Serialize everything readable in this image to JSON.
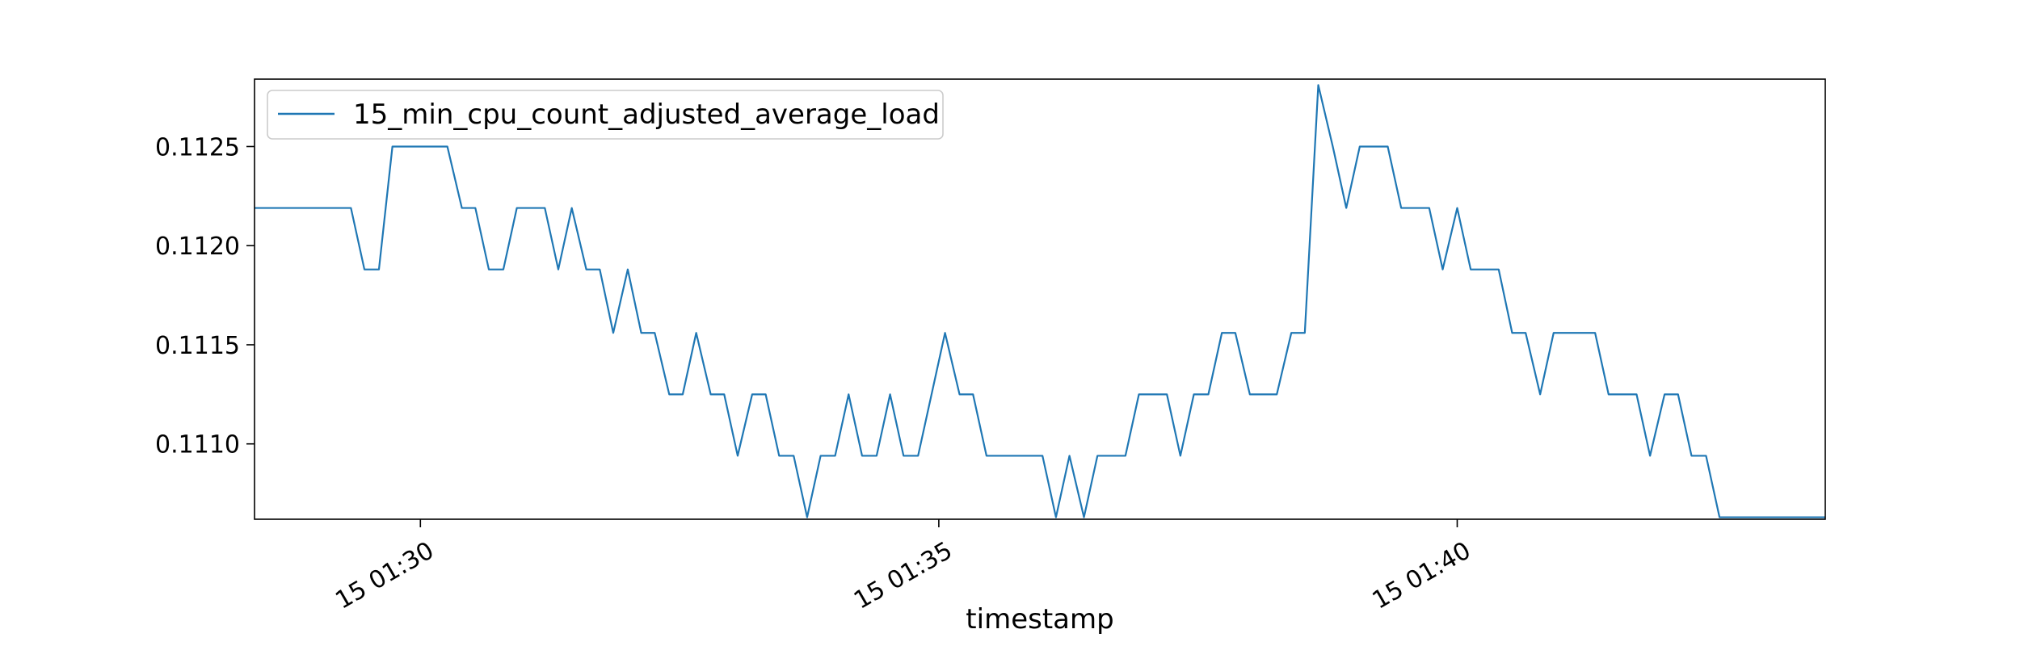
{
  "chart_data": {
    "type": "line",
    "title": "",
    "xlabel": "timestamp",
    "ylabel": "",
    "grid": false,
    "legend_placement": "top-left",
    "line_color": "#1f77b4",
    "x_unit": "minute of 15 01:xx",
    "xlim": [
      26.75,
      41.9
    ],
    "ylim": [
      0.11062,
      0.11284
    ],
    "x_ticks": [
      {
        "value": 28.35,
        "label": "15 01:30"
      },
      {
        "value": 33.35,
        "label": "15 01:35"
      },
      {
        "value": 38.35,
        "label": "15 01:40"
      }
    ],
    "y_ticks": [
      {
        "value": 0.111,
        "label": "0.1110"
      },
      {
        "value": 0.1115,
        "label": "0.1115"
      },
      {
        "value": 0.112,
        "label": "0.1120"
      },
      {
        "value": 0.1125,
        "label": "0.1125"
      }
    ],
    "series": [
      {
        "name": "15_min_cpu_count_adjusted_average_load",
        "x": [
          26.75,
          27.68,
          27.81,
          27.95,
          28.08,
          28.21,
          28.35,
          28.48,
          28.61,
          28.75,
          28.88,
          29.01,
          29.15,
          29.28,
          29.41,
          29.55,
          29.68,
          29.81,
          29.95,
          30.08,
          30.21,
          30.35,
          30.48,
          30.61,
          30.75,
          30.88,
          31.01,
          31.15,
          31.28,
          31.41,
          31.55,
          31.68,
          31.81,
          31.95,
          32.08,
          32.21,
          32.35,
          32.48,
          32.61,
          32.75,
          32.88,
          33.01,
          33.15,
          33.28,
          33.41,
          33.55,
          33.68,
          33.81,
          33.95,
          34.08,
          34.21,
          34.35,
          34.48,
          34.61,
          34.75,
          34.88,
          35.01,
          35.15,
          35.28,
          35.41,
          35.55,
          35.68,
          35.81,
          35.95,
          36.08,
          36.21,
          36.35,
          36.48,
          36.61,
          36.75,
          36.88,
          37.01,
          37.15,
          37.28,
          37.41,
          37.55,
          37.68,
          37.81,
          37.95,
          38.08,
          38.21,
          38.35,
          38.48,
          38.61,
          38.75,
          38.88,
          39.01,
          39.15,
          39.28,
          39.41,
          39.55,
          39.68,
          39.81,
          39.95,
          40.08,
          40.21,
          40.35,
          40.48,
          40.61,
          40.75,
          40.88,
          41.01,
          41.15,
          41.28,
          41.41,
          41.55,
          41.68,
          41.81,
          41.9
        ],
        "values": [
          0.11219,
          0.11219,
          0.11188,
          0.11188,
          0.1125,
          0.1125,
          0.1125,
          0.1125,
          0.1125,
          0.11219,
          0.11219,
          0.11188,
          0.11188,
          0.11219,
          0.11219,
          0.11219,
          0.11188,
          0.11219,
          0.11188,
          0.11188,
          0.11156,
          0.11188,
          0.11156,
          0.11156,
          0.11125,
          0.11125,
          0.11156,
          0.11125,
          0.11125,
          0.11094,
          0.11125,
          0.11125,
          0.11094,
          0.11094,
          0.11063,
          0.11094,
          0.11094,
          0.11125,
          0.11094,
          0.11094,
          0.11125,
          0.11094,
          0.11094,
          0.11125,
          0.11156,
          0.11125,
          0.11125,
          0.11094,
          0.11094,
          0.11094,
          0.11094,
          0.11094,
          0.11063,
          0.11094,
          0.11063,
          0.11094,
          0.11094,
          0.11094,
          0.11125,
          0.11125,
          0.11125,
          0.11094,
          0.11125,
          0.11125,
          0.11156,
          0.11156,
          0.11125,
          0.11125,
          0.11125,
          0.11156,
          0.11156,
          0.11281,
          0.1125,
          0.11219,
          0.1125,
          0.1125,
          0.1125,
          0.11219,
          0.11219,
          0.11219,
          0.11188,
          0.11219,
          0.11188,
          0.11188,
          0.11188,
          0.11156,
          0.11156,
          0.11125,
          0.11156,
          0.11156,
          0.11156,
          0.11156,
          0.11125,
          0.11125,
          0.11125,
          0.11094,
          0.11125,
          0.11125,
          0.11094,
          0.11094,
          0.11063,
          0.11063,
          0.11063,
          0.11063,
          0.11063,
          0.11063,
          0.11063,
          0.11063,
          0.11063
        ]
      }
    ]
  }
}
